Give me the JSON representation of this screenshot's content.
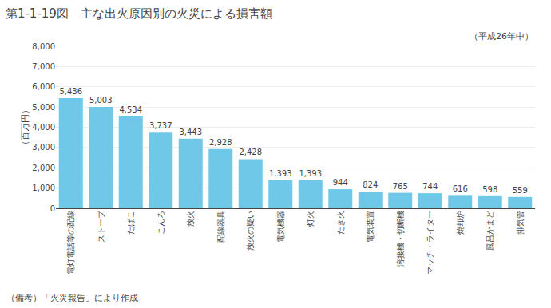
{
  "chart_data": {
    "type": "bar",
    "title": "第1-1-19図　主な出火原因別の火災による損害額",
    "subtitle": "（平成26年中）",
    "ylabel": "（百万円）",
    "annotations": [
      "（備考）「火災報告」により作成"
    ],
    "categories": [
      "電灯電話等の配線",
      "ストーブ",
      "たばこ",
      "こんろ",
      "放火",
      "配線器具",
      "放火の疑い",
      "電気機器",
      "灯火",
      "たき火",
      "電気装置",
      "溶接機・切断機",
      "マッチ・ライター",
      "焼却炉",
      "風呂かまど",
      "排気管"
    ],
    "values": [
      5436,
      5003,
      4534,
      3737,
      3443,
      2928,
      2428,
      1393,
      1393,
      944,
      824,
      765,
      744,
      616,
      598,
      559
    ],
    "value_labels": [
      "5,436",
      "5,003",
      "4,534",
      "3,737",
      "3,443",
      "2,928",
      "2,428",
      "1,393",
      "1,393",
      "944",
      "824",
      "765",
      "744",
      "616",
      "598",
      "559"
    ],
    "color": "#70C8E8",
    "ylim": [
      0,
      8000
    ],
    "yticks": [
      0,
      {
        "value": 1000,
        "label": "1,000"
      },
      {
        "value": 2000,
        "label": "2,000"
      },
      {
        "value": 3000,
        "label": "3,000"
      },
      {
        "value": 4000,
        "label": "4,000"
      },
      {
        "value": 5000,
        "label": "5,000"
      },
      {
        "value": 6000,
        "label": "6,000"
      },
      {
        "value": 7000,
        "label": "7,000"
      },
      {
        "value": 8000,
        "label": "8,000"
      }
    ],
    "grid": true,
    "data_labels": true
  }
}
